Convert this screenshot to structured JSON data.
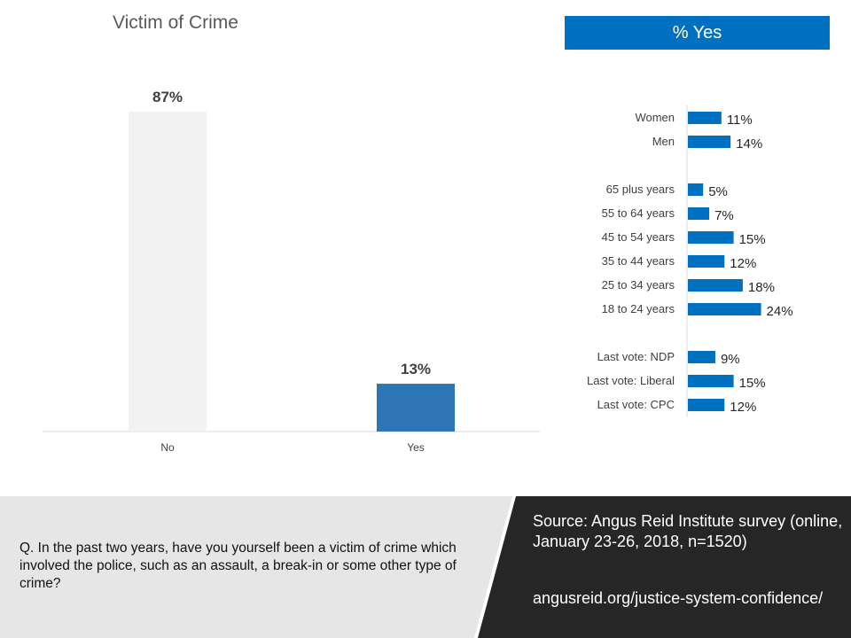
{
  "left_chart_title": "Victim of Crime",
  "right_chart_banner": "% Yes",
  "chart_data": [
    {
      "type": "bar",
      "title": "Victim of Crime",
      "categories": [
        "No",
        "Yes"
      ],
      "values": [
        87,
        13
      ],
      "labels": [
        "87%",
        "13%"
      ],
      "colors": [
        "#f2f2f2",
        "#2e75b6"
      ],
      "ylim": [
        0,
        100
      ],
      "grid": false
    },
    {
      "type": "bar",
      "orientation": "horizontal",
      "title": "% Yes",
      "groups": [
        {
          "categories": [
            "Women",
            "Men"
          ],
          "values": [
            11,
            14
          ],
          "labels": [
            "11%",
            "14%"
          ]
        },
        {
          "categories": [
            "65 plus years",
            "55 to 64 years",
            "45 to 54 years",
            "35 to 44 years",
            "25 to 34 years",
            "18 to 24 years"
          ],
          "values": [
            5,
            7,
            15,
            12,
            18,
            24
          ],
          "labels": [
            "5%",
            "7%",
            "15%",
            "12%",
            "18%",
            "24%"
          ]
        },
        {
          "categories": [
            "Last vote: NDP",
            "Last vote: Liberal",
            "Last vote: CPC"
          ],
          "values": [
            9,
            15,
            12
          ],
          "labels": [
            "9%",
            "15%",
            "12%"
          ]
        }
      ],
      "color": "#0070c0",
      "grid": false
    }
  ],
  "footer": {
    "question": "Q.   In the past two years, have you yourself been a victim of crime which involved the police, such as an assault, a break-in or some other type of crime?",
    "source": "Source: Angus Reid Institute survey (online, January 23-26, 2018, n=1520)",
    "url": "angusreid.org/justice-system-confidence/"
  },
  "colors": {
    "banner": "#0070c0",
    "footer_light": "#e7e6e6",
    "footer_dark": "#262626"
  }
}
